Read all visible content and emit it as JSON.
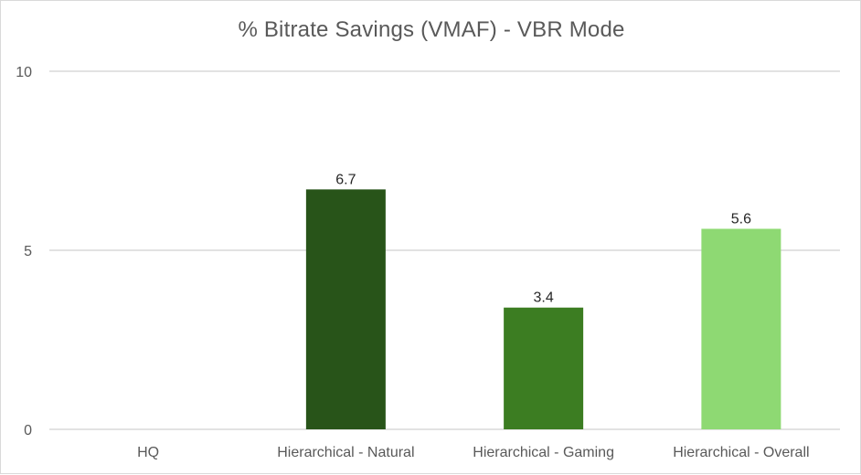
{
  "chart_data": {
    "type": "bar",
    "title": "% Bitrate Savings (VMAF) - VBR Mode",
    "categories": [
      "HQ",
      "Hierarchical - Natural",
      "Hierarchical - Gaming",
      "Hierarchical - Overall"
    ],
    "values": [
      null,
      6.7,
      3.4,
      5.6
    ],
    "data_labels": [
      "",
      "6.7",
      "3.4",
      "5.6"
    ],
    "bar_colors": [
      "#ffffff",
      "#285419",
      "#3c7d22",
      "#8ed973"
    ],
    "ylim": [
      0,
      10
    ],
    "yticks": [
      0,
      5,
      10
    ],
    "ytick_labels": [
      "0",
      "5",
      "10"
    ],
    "xlabel": "",
    "ylabel": "",
    "grid": true,
    "legend": "none"
  }
}
